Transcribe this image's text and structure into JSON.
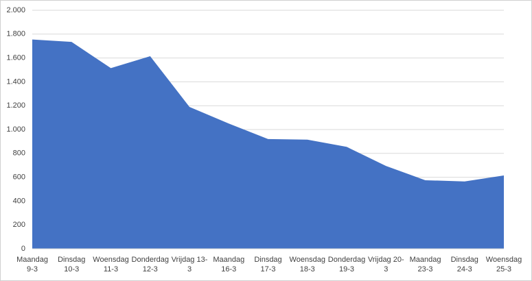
{
  "chart_data": {
    "type": "area",
    "categories": [
      [
        "Maandag",
        "9-3"
      ],
      [
        "Dinsdag",
        "10-3"
      ],
      [
        "Woensdag",
        "11-3"
      ],
      [
        "Donderdag",
        "12-3"
      ],
      [
        "Vrijdag 13-",
        "3"
      ],
      [
        "Maandag",
        "16-3"
      ],
      [
        "Dinsdag",
        "17-3"
      ],
      [
        "Woensdag",
        "18-3"
      ],
      [
        "Donderdag",
        "19-3"
      ],
      [
        "Vrijdag 20-",
        "3"
      ],
      [
        "Maandag",
        "23-3"
      ],
      [
        "Dinsdag",
        "24-3"
      ],
      [
        "Woensdag",
        "25-3"
      ]
    ],
    "values": [
      1755,
      1735,
      1515,
      1615,
      1190,
      1050,
      920,
      915,
      855,
      695,
      575,
      565,
      615
    ],
    "color": "#4472c4",
    "ylim": [
      0,
      2000
    ],
    "yticks": [
      0,
      200,
      400,
      600,
      800,
      {
        "value": 1000,
        "label": "1.000"
      },
      {
        "value": 1200,
        "label": "1.200"
      },
      {
        "value": 1400,
        "label": "1.400"
      },
      {
        "value": 1600,
        "label": "1.600"
      },
      {
        "value": 1800,
        "label": "1.800"
      },
      {
        "value": 2000,
        "label": "2.000"
      }
    ],
    "grid": true
  }
}
